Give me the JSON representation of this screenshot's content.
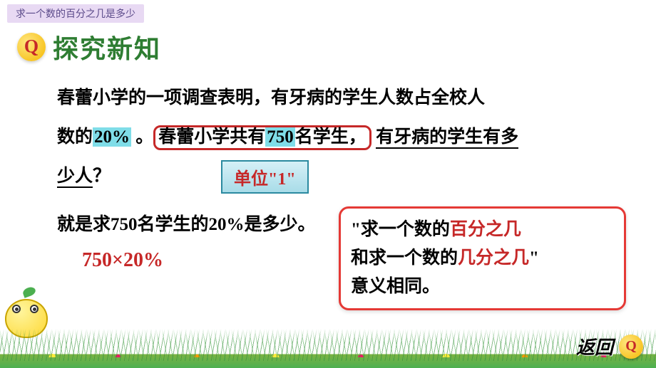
{
  "header": {
    "tag": "求一个数的百分之几是多少",
    "section_title": "探究新知"
  },
  "problem": {
    "line1_a": "春蕾小学的一项调查表明，有牙病的学生人数占全校人",
    "line2_a": "数的",
    "percent": "20%",
    "line2_b": " 。",
    "boxed_a": "春蕾小学共有",
    "boxed_num": "750",
    "boxed_b": "名学生，",
    "underlined_a": "有牙病的学生有多",
    "underlined_b": "少人",
    "qmark": "？"
  },
  "unit_label": "单位\"1\"",
  "explain": "就是求750名学生的20%是多少。",
  "formula": "750×20%",
  "callout": {
    "p1": "\"求一个数的",
    "r1": "百分之几",
    "p2": "和求一个数的",
    "r2": "几分之几",
    "p3": "\"",
    "p4": "意义相同。"
  },
  "back_label": "返回",
  "colors": {
    "tag_bg": "#e8d9f3",
    "tag_text": "#5b4a8a",
    "title_green": "#2e7d32",
    "hl_cyan": "#7fdde8",
    "red": "#c62828",
    "callout_border": "#e53935"
  }
}
